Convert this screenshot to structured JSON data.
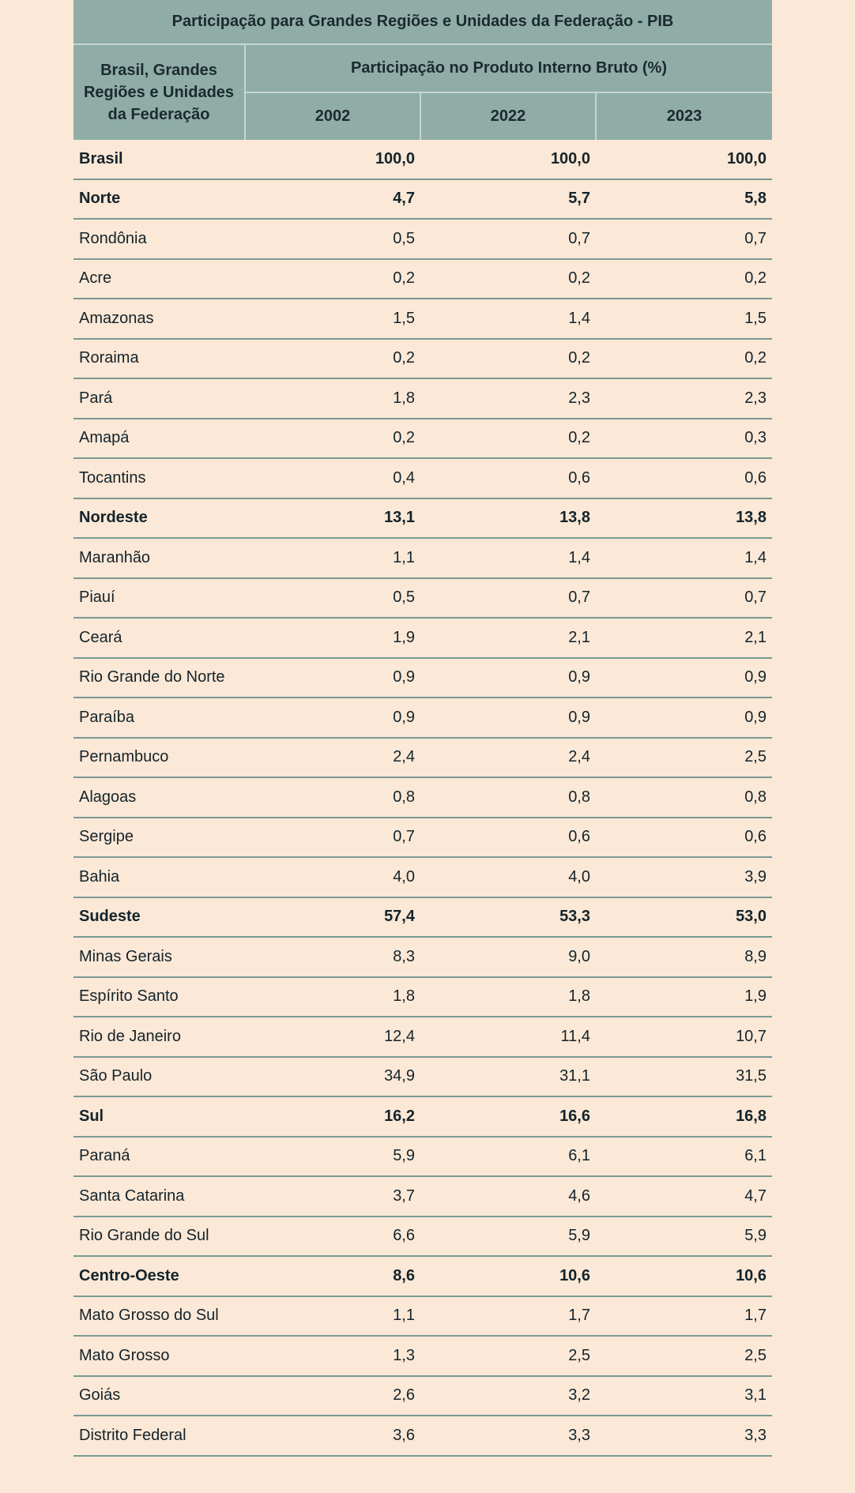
{
  "table": {
    "title": "Participação para Grandes Regiões e Unidades da Federação - PIB",
    "name_header": "Brasil, Grandes Regiões e Unidades da Federação",
    "group_header": "Participação no Produto Interno Bruto (%)",
    "years": [
      "2002",
      "2022",
      "2023"
    ],
    "rows": [
      {
        "name": "Brasil",
        "v2002": "100,0",
        "v2022": "100,0",
        "v2023": "100,0",
        "bold": true
      },
      {
        "name": "Norte",
        "v2002": "4,7",
        "v2022": "5,7",
        "v2023": "5,8",
        "bold": true
      },
      {
        "name": "Rondônia",
        "v2002": "0,5",
        "v2022": "0,7",
        "v2023": "0,7",
        "bold": false
      },
      {
        "name": "Acre",
        "v2002": "0,2",
        "v2022": "0,2",
        "v2023": "0,2",
        "bold": false
      },
      {
        "name": "Amazonas",
        "v2002": "1,5",
        "v2022": "1,4",
        "v2023": "1,5",
        "bold": false
      },
      {
        "name": "Roraima",
        "v2002": "0,2",
        "v2022": "0,2",
        "v2023": "0,2",
        "bold": false
      },
      {
        "name": "Pará",
        "v2002": "1,8",
        "v2022": "2,3",
        "v2023": "2,3",
        "bold": false
      },
      {
        "name": "Amapá",
        "v2002": "0,2",
        "v2022": "0,2",
        "v2023": "0,3",
        "bold": false
      },
      {
        "name": "Tocantins",
        "v2002": "0,4",
        "v2022": "0,6",
        "v2023": "0,6",
        "bold": false
      },
      {
        "name": "Nordeste",
        "v2002": "13,1",
        "v2022": "13,8",
        "v2023": "13,8",
        "bold": true
      },
      {
        "name": "Maranhão",
        "v2002": "1,1",
        "v2022": "1,4",
        "v2023": "1,4",
        "bold": false
      },
      {
        "name": "Piauí",
        "v2002": "0,5",
        "v2022": "0,7",
        "v2023": "0,7",
        "bold": false
      },
      {
        "name": "Ceará",
        "v2002": "1,9",
        "v2022": "2,1",
        "v2023": "2,1",
        "bold": false
      },
      {
        "name": "Rio Grande do Norte",
        "v2002": "0,9",
        "v2022": "0,9",
        "v2023": "0,9",
        "bold": false
      },
      {
        "name": "Paraíba",
        "v2002": "0,9",
        "v2022": "0,9",
        "v2023": "0,9",
        "bold": false
      },
      {
        "name": "Pernambuco",
        "v2002": "2,4",
        "v2022": "2,4",
        "v2023": "2,5",
        "bold": false
      },
      {
        "name": "Alagoas",
        "v2002": "0,8",
        "v2022": "0,8",
        "v2023": "0,8",
        "bold": false
      },
      {
        "name": "Sergipe",
        "v2002": "0,7",
        "v2022": "0,6",
        "v2023": "0,6",
        "bold": false
      },
      {
        "name": "Bahia",
        "v2002": "4,0",
        "v2022": "4,0",
        "v2023": "3,9",
        "bold": false
      },
      {
        "name": "Sudeste",
        "v2002": "57,4",
        "v2022": "53,3",
        "v2023": "53,0",
        "bold": true
      },
      {
        "name": "Minas Gerais",
        "v2002": "8,3",
        "v2022": "9,0",
        "v2023": "8,9",
        "bold": false
      },
      {
        "name": "Espírito Santo",
        "v2002": "1,8",
        "v2022": "1,8",
        "v2023": "1,9",
        "bold": false
      },
      {
        "name": "Rio de Janeiro",
        "v2002": "12,4",
        "v2022": "11,4",
        "v2023": "10,7",
        "bold": false
      },
      {
        "name": "São Paulo",
        "v2002": "34,9",
        "v2022": "31,1",
        "v2023": "31,5",
        "bold": false
      },
      {
        "name": "Sul",
        "v2002": "16,2",
        "v2022": "16,6",
        "v2023": "16,8",
        "bold": true
      },
      {
        "name": "Paraná",
        "v2002": "5,9",
        "v2022": "6,1",
        "v2023": "6,1",
        "bold": false
      },
      {
        "name": "Santa Catarina",
        "v2002": "3,7",
        "v2022": "4,6",
        "v2023": "4,7",
        "bold": false
      },
      {
        "name": "Rio Grande do Sul",
        "v2002": "6,6",
        "v2022": "5,9",
        "v2023": "5,9",
        "bold": false
      },
      {
        "name": "Centro-Oeste",
        "v2002": "8,6",
        "v2022": "10,6",
        "v2023": "10,6",
        "bold": true
      },
      {
        "name": "Mato Grosso do Sul",
        "v2002": "1,1",
        "v2022": "1,7",
        "v2023": "1,7",
        "bold": false
      },
      {
        "name": "Mato Grosso",
        "v2002": "1,3",
        "v2022": "2,5",
        "v2023": "2,5",
        "bold": false
      },
      {
        "name": "Goiás",
        "v2002": "2,6",
        "v2022": "3,2",
        "v2023": "3,1",
        "bold": false
      },
      {
        "name": "Distrito Federal",
        "v2002": "3,6",
        "v2022": "3,3",
        "v2023": "3,3",
        "bold": false
      }
    ]
  },
  "colors": {
    "page_background": "#fbe8d6",
    "header_background": "#8fada6",
    "row_border": "#7a9a95"
  }
}
